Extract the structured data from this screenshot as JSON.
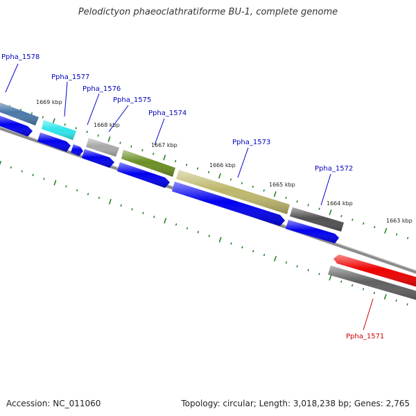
{
  "title": "Pelodictyon phaeoclathratiforme BU-1, complete genome",
  "footer": {
    "accession": "Accession: NC_011060",
    "topology": "Topology: circular; Length: 3,018,238 bp; Genes: 2,765"
  },
  "ruler_labels": [
    "1669 kbp",
    "1668 kbp",
    "1667 kbp",
    "1666 kbp",
    "1665 kbp",
    "1664 kbp",
    "1663 kbp"
  ],
  "genes": [
    {
      "id": "Ppha_1578",
      "strand": "forward",
      "color": "#4a78a8"
    },
    {
      "id": "Ppha_1577",
      "strand": "forward",
      "color": "#2ee6ea"
    },
    {
      "id": "Ppha_1576",
      "strand": "forward",
      "color": "#0000ee"
    },
    {
      "id": "Ppha_1575",
      "strand": "forward",
      "color": "#a8a8a8"
    },
    {
      "id": "Ppha_1574",
      "strand": "forward",
      "color": "#6b8e23"
    },
    {
      "id": "Ppha_1573",
      "strand": "forward",
      "color": "#bdb76b"
    },
    {
      "id": "Ppha_1572",
      "strand": "forward",
      "color": "#505050"
    },
    {
      "id": "Ppha_1571",
      "strand": "reverse",
      "color": "#ee0000"
    }
  ],
  "colors": {
    "label_forward": "#0000c0",
    "label_reverse": "#cc0000",
    "cds": "#0000ee",
    "tick": "#1a7a1a",
    "backbone": "#808080"
  }
}
